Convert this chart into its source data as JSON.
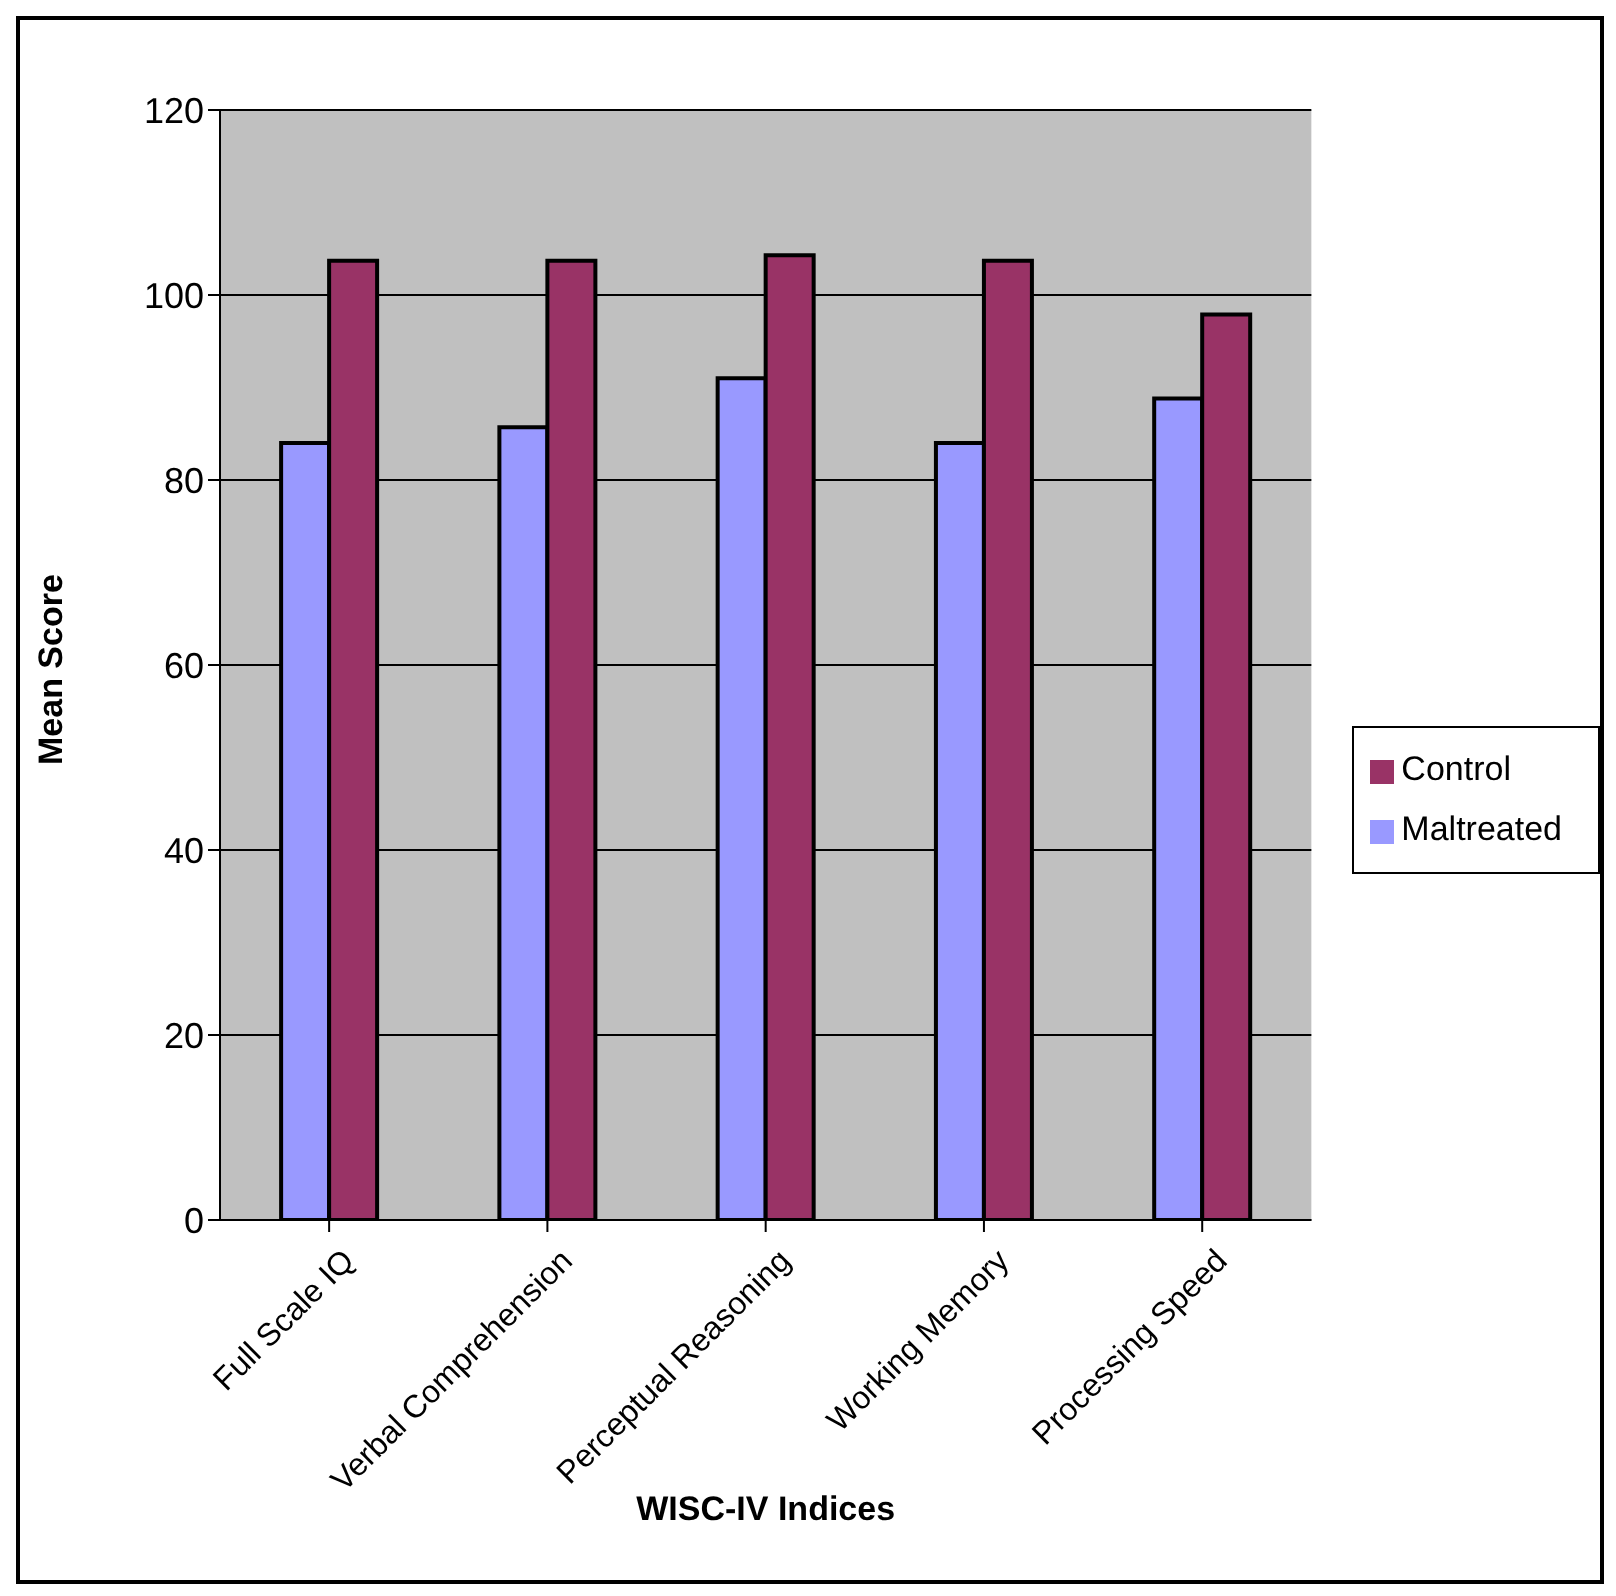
{
  "chart_data": {
    "type": "bar",
    "xlabel": "WISC-IV Indices",
    "ylabel": "Mean Score",
    "categories": [
      "Full Scale IQ",
      "Verbal Comprehension",
      "Perceptual Reasoning",
      "Working Memory",
      "Processing Speed"
    ],
    "series": [
      {
        "name": "Maltreated",
        "color": "#9999ff",
        "values": [
          84,
          85.7,
          91,
          84,
          88.8
        ]
      },
      {
        "name": "Control",
        "color": "#993366",
        "values": [
          103.7,
          103.7,
          104.3,
          103.7,
          97.9
        ]
      }
    ],
    "ylim": [
      0,
      120
    ],
    "yticks": [
      0,
      20,
      40,
      60,
      80,
      100,
      120
    ],
    "grid": "y",
    "legend": "right"
  }
}
